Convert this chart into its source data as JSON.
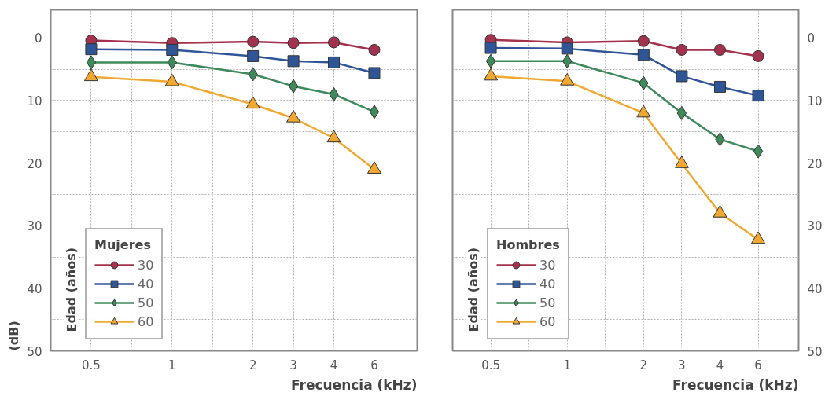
{
  "chart_data": [
    {
      "type": "line",
      "ylabel": "(dB)",
      "xlabel": "Frecuencia (kHz)",
      "legend_title": "Mujeres",
      "annotations": [
        "Edad (años)"
      ],
      "categories": [
        "0.5",
        null,
        "1",
        null,
        "2",
        "3",
        "4",
        "6"
      ],
      "ylim": [
        50,
        -4.5
      ],
      "yticks": [
        0,
        {
          "value": 5,
          "label": null
        },
        10,
        {
          "value": 15,
          "label": null
        },
        20,
        {
          "value": 25,
          "label": null
        },
        30,
        {
          "value": 35,
          "label": null
        },
        40,
        {
          "value": 45,
          "label": null
        },
        50
      ],
      "grid": true,
      "legend": "bottom left",
      "series": [
        {
          "name": "30",
          "color": "#a3324e",
          "marker": "circle",
          "values": [
            0.4,
            null,
            0.8,
            null,
            0.6,
            0.8,
            0.7,
            1.9
          ]
        },
        {
          "name": "40",
          "color": "#2f5597",
          "marker": "square",
          "values": [
            1.8,
            null,
            1.9,
            null,
            2.9,
            3.7,
            3.9,
            5.6
          ]
        },
        {
          "name": "50",
          "color": "#3f8a5a",
          "marker": "diamond",
          "values": [
            3.9,
            null,
            3.9,
            null,
            5.8,
            7.7,
            9.0,
            11.8
          ]
        },
        {
          "name": "60",
          "color": "#f0a830",
          "marker": "triangle",
          "values": [
            6.2,
            null,
            7.0,
            null,
            10.6,
            12.8,
            16.0,
            21.0
          ]
        }
      ]
    },
    {
      "type": "line",
      "xlabel": "Frecuencia (kHz)",
      "legend_title": "Hombres",
      "annotations": [
        "Edad (años)"
      ],
      "categories": [
        "0.5",
        null,
        "1",
        null,
        "2",
        "3",
        "4",
        "6"
      ],
      "ylim": [
        50,
        -4.5
      ],
      "yticks": [
        0,
        {
          "value": 5,
          "label": null
        },
        10,
        {
          "value": 15,
          "label": null
        },
        20,
        {
          "value": 25,
          "label": null
        },
        30,
        {
          "value": 35,
          "label": null
        },
        40,
        {
          "value": 45,
          "label": null
        },
        50
      ],
      "grid": true,
      "legend": "bottom left",
      "series": [
        {
          "name": "30",
          "color": "#a3324e",
          "marker": "circle",
          "values": [
            0.3,
            null,
            0.7,
            null,
            0.5,
            1.9,
            1.9,
            2.9
          ]
        },
        {
          "name": "40",
          "color": "#2f5597",
          "marker": "square",
          "values": [
            1.6,
            null,
            1.7,
            null,
            2.7,
            6.1,
            7.8,
            9.2
          ]
        },
        {
          "name": "50",
          "color": "#3f8a5a",
          "marker": "diamond",
          "values": [
            3.7,
            null,
            3.7,
            null,
            7.2,
            12.0,
            16.2,
            18.1
          ]
        },
        {
          "name": "60",
          "color": "#f0a830",
          "marker": "triangle",
          "values": [
            6.1,
            null,
            6.9,
            null,
            12.0,
            20.1,
            28.0,
            32.2
          ]
        }
      ]
    }
  ]
}
